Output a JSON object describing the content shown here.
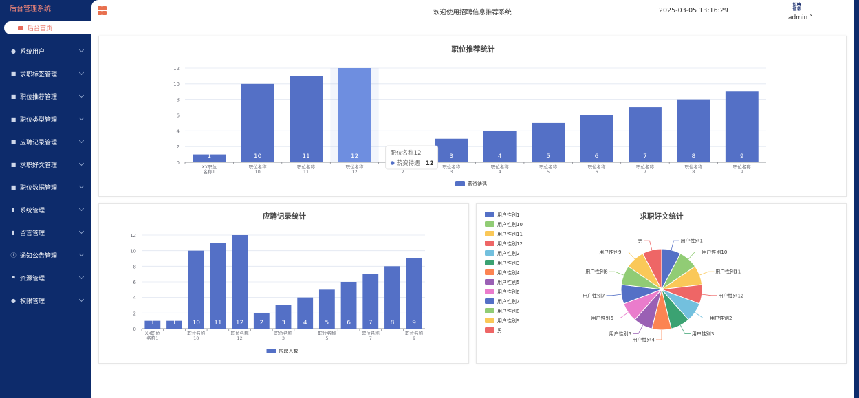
{
  "app": {
    "brand": "后台管理系统",
    "home_label": "后台首页",
    "welcome": "欢迎使用招聘信息推荐系统",
    "datetime": "2025-03-05 13:16:29",
    "avatar_text": "招聘\n信息",
    "user": "admin"
  },
  "sidebar": {
    "items": [
      {
        "label": "系统用户",
        "icon": "user-icon"
      },
      {
        "label": "求职标签管理",
        "icon": "edit-icon"
      },
      {
        "label": "职位推荐管理",
        "icon": "edit-icon"
      },
      {
        "label": "职位类型管理",
        "icon": "edit-icon"
      },
      {
        "label": "应聘记录管理",
        "icon": "edit-icon"
      },
      {
        "label": "求职好文管理",
        "icon": "edit-icon"
      },
      {
        "label": "职位数据管理",
        "icon": "edit-icon"
      },
      {
        "label": "系统管理",
        "icon": "bar-chart-icon"
      },
      {
        "label": "留言管理",
        "icon": "bar-chart-icon"
      },
      {
        "label": "通知公告管理",
        "icon": "info-icon"
      },
      {
        "label": "资源管理",
        "icon": "flag-icon"
      },
      {
        "label": "权限管理",
        "icon": "user-icon"
      }
    ]
  },
  "chart_data": [
    {
      "type": "bar",
      "title": "职位推荐统计",
      "categories": [
        [
          "XX职位",
          "名称1"
        ],
        [
          "职位名称",
          "10"
        ],
        [
          "职位名称",
          "11"
        ],
        [
          "职位名称",
          "12"
        ],
        [
          "职位名称",
          "2"
        ],
        [
          "职位名称",
          "3"
        ],
        [
          "职位名称",
          "4"
        ],
        [
          "职位名称",
          "5"
        ],
        [
          "职位名称",
          "6"
        ],
        [
          "职位名称",
          "7"
        ],
        [
          "职位名称",
          "8"
        ],
        [
          "职位名称",
          "9"
        ]
      ],
      "series": [
        {
          "name": "薪资待遇",
          "values": [
            1,
            10,
            11,
            12,
            2,
            3,
            4,
            5,
            6,
            7,
            8,
            9
          ]
        }
      ],
      "ylim": [
        0,
        12
      ],
      "yticks": [
        0,
        2,
        4,
        6,
        8,
        10,
        12
      ],
      "legend": "bottom",
      "highlight_index": 3,
      "tooltip": {
        "title": "职位名称12",
        "series": "薪资待遇",
        "value": "12"
      },
      "color": "#5470c6",
      "highlight_color": "#6e8ee0"
    },
    {
      "type": "bar",
      "title": "应聘记录统计",
      "categories": [
        [
          "XX职位",
          "名称1"
        ],
        [
          "",
          ""
        ],
        [
          "职位名称",
          "10"
        ],
        [
          "",
          ""
        ],
        [
          "职位名称",
          "12"
        ],
        [
          "",
          ""
        ],
        [
          "职位名称",
          "3"
        ],
        [
          "",
          ""
        ],
        [
          "职位名称",
          "5"
        ],
        [
          "",
          ""
        ],
        [
          "职位名称",
          "7"
        ],
        [
          "",
          ""
        ],
        [
          "职位名称",
          "9"
        ]
      ],
      "series": [
        {
          "name": "应聘人数",
          "values": [
            1,
            1,
            10,
            11,
            12,
            2,
            3,
            4,
            5,
            6,
            7,
            8,
            9
          ]
        }
      ],
      "ylim": [
        0,
        12
      ],
      "yticks": [
        0,
        2,
        4,
        6,
        8,
        10,
        12
      ],
      "legend": "bottom",
      "color": "#5470c6"
    },
    {
      "type": "pie",
      "title": "求职好文统计",
      "legend": "left",
      "slices": [
        {
          "label": "用户性别1",
          "value": 1,
          "color": "#5470c6"
        },
        {
          "label": "用户性别10",
          "value": 1,
          "color": "#91cc75"
        },
        {
          "label": "用户性别11",
          "value": 1,
          "color": "#fac858"
        },
        {
          "label": "用户性别12",
          "value": 1,
          "color": "#ee6666"
        },
        {
          "label": "用户性别2",
          "value": 1,
          "color": "#73c0de"
        },
        {
          "label": "用户性别3",
          "value": 1,
          "color": "#3ba272"
        },
        {
          "label": "用户性别4",
          "value": 1,
          "color": "#fc8452"
        },
        {
          "label": "用户性别5",
          "value": 1,
          "color": "#9a60b4"
        },
        {
          "label": "用户性别6",
          "value": 1,
          "color": "#ea7ccc"
        },
        {
          "label": "用户性别7",
          "value": 1,
          "color": "#5470c6"
        },
        {
          "label": "用户性别8",
          "value": 1,
          "color": "#91cc75"
        },
        {
          "label": "用户性别9",
          "value": 1,
          "color": "#fac858"
        },
        {
          "label": "男",
          "value": 1,
          "color": "#ee6666"
        }
      ]
    }
  ]
}
